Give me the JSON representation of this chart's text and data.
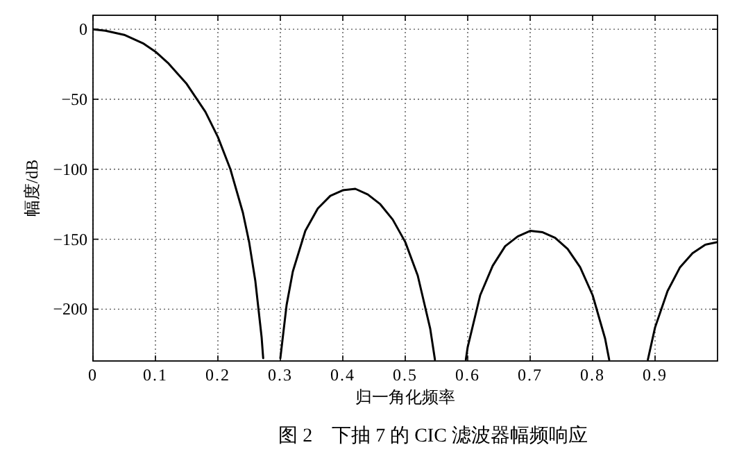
{
  "chart_data": {
    "type": "line",
    "title": "图 2　下抽 7 的 CIC 滤波器幅频响应",
    "xlabel": "归一角化频率",
    "ylabel": "幅度/dB",
    "series": [
      {
        "color": "#000000",
        "x": [
          0,
          0.02,
          0.05,
          0.08,
          0.1,
          0.12,
          0.15,
          0.18,
          0.2,
          0.22,
          0.24,
          0.25,
          0.26,
          0.27,
          0.2725
        ],
        "values": [
          0,
          -1,
          -4,
          -10,
          -16,
          -24,
          -39,
          -59,
          -77,
          -100,
          -131,
          -152,
          -180,
          -220,
          -235
        ]
      },
      {
        "color": "#000000",
        "x": [
          0.3,
          0.31,
          0.32,
          0.34,
          0.36,
          0.38,
          0.4,
          0.42,
          0.44,
          0.46,
          0.48,
          0.5,
          0.52,
          0.54,
          0.5475
        ],
        "values": [
          -235,
          -197,
          -173,
          -144,
          -128,
          -119,
          -115,
          -114,
          -118,
          -125,
          -136,
          -152,
          -176,
          -214,
          -236
        ]
      },
      {
        "color": "#000000",
        "x": [
          0.597,
          0.6,
          0.62,
          0.64,
          0.66,
          0.68,
          0.7,
          0.72,
          0.74,
          0.76,
          0.78,
          0.8,
          0.82,
          0.8265
        ],
        "values": [
          -236,
          -227,
          -190,
          -169,
          -155,
          -148,
          -144,
          -145,
          -149,
          -157,
          -170,
          -190,
          -221,
          -236
        ]
      },
      {
        "color": "#000000",
        "x": [
          0.8885,
          0.9,
          0.92,
          0.94,
          0.96,
          0.98,
          1.0
        ],
        "values": [
          -236,
          -213,
          -187,
          -170,
          -160,
          -154,
          -152
        ]
      }
    ],
    "xlim": [
      0,
      1
    ],
    "ylim": [
      -237,
      10
    ],
    "xticks": [
      0,
      0.1,
      0.2,
      0.3,
      0.4,
      0.5,
      0.6,
      0.7,
      0.8,
      0.9
    ],
    "yticks": [
      -200,
      -150,
      -100,
      -50,
      0
    ],
    "grid": true,
    "line_style": "solid",
    "marker": "none"
  }
}
